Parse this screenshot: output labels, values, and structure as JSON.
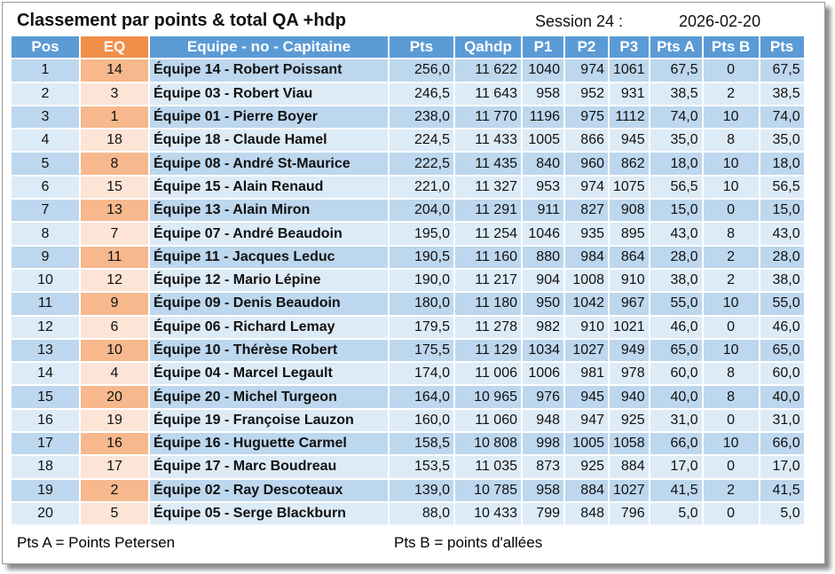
{
  "header": {
    "title": "Classement par points & total QA +hdp",
    "session": "Session 24 :",
    "date": "2026-02-20"
  },
  "table": {
    "columns": [
      "Pos",
      "EQ",
      "Equipe - no - Capitaine",
      "Pts",
      "Qahdp",
      "P1",
      "P2",
      "P3",
      "Pts A",
      "Pts B",
      "Pts"
    ],
    "rows": [
      [
        "1",
        "14",
        "Équipe 14 - Robert Poissant",
        "256,0",
        "11 622",
        "1040",
        "974",
        "1061",
        "67,5",
        "0",
        "67,5"
      ],
      [
        "2",
        "3",
        "Équipe 03 - Robert Viau",
        "246,5",
        "11 643",
        "958",
        "952",
        "931",
        "38,5",
        "2",
        "38,5"
      ],
      [
        "3",
        "1",
        "Équipe 01 - Pierre Boyer",
        "238,0",
        "11 770",
        "1196",
        "975",
        "1112",
        "74,0",
        "10",
        "74,0"
      ],
      [
        "4",
        "18",
        "Équipe 18 - Claude Hamel",
        "224,5",
        "11 433",
        "1005",
        "866",
        "945",
        "35,0",
        "8",
        "35,0"
      ],
      [
        "5",
        "8",
        "Équipe 08 - André St-Maurice",
        "222,5",
        "11 435",
        "840",
        "960",
        "862",
        "18,0",
        "10",
        "18,0"
      ],
      [
        "6",
        "15",
        "Équipe 15 - Alain Renaud",
        "221,0",
        "11 327",
        "953",
        "974",
        "1075",
        "56,5",
        "10",
        "56,5"
      ],
      [
        "7",
        "13",
        "Équipe 13 - Alain Miron",
        "204,0",
        "11 291",
        "911",
        "827",
        "908",
        "15,0",
        "0",
        "15,0"
      ],
      [
        "8",
        "7",
        "Équipe 07 - André Beaudoin",
        "195,0",
        "11 254",
        "1046",
        "935",
        "895",
        "43,0",
        "8",
        "43,0"
      ],
      [
        "9",
        "11",
        "Équipe 11 - Jacques Leduc",
        "190,5",
        "11 160",
        "880",
        "984",
        "864",
        "28,0",
        "2",
        "28,0"
      ],
      [
        "10",
        "12",
        "Équipe 12 - Mario Lépine",
        "190,0",
        "11 217",
        "904",
        "1008",
        "910",
        "38,0",
        "2",
        "38,0"
      ],
      [
        "11",
        "9",
        "Équipe 09 - Denis Beaudoin",
        "180,0",
        "11 180",
        "950",
        "1042",
        "967",
        "55,0",
        "10",
        "55,0"
      ],
      [
        "12",
        "6",
        "Équipe 06 - Richard Lemay",
        "179,5",
        "11 278",
        "982",
        "910",
        "1021",
        "46,0",
        "0",
        "46,0"
      ],
      [
        "13",
        "10",
        "Équipe 10 - Thérèse Robert",
        "175,5",
        "11 129",
        "1034",
        "1027",
        "949",
        "65,0",
        "10",
        "65,0"
      ],
      [
        "14",
        "4",
        "Équipe 04 - Marcel Legault",
        "174,0",
        "11 006",
        "1006",
        "981",
        "978",
        "60,0",
        "8",
        "60,0"
      ],
      [
        "15",
        "20",
        "Équipe 20 - Michel Turgeon",
        "164,0",
        "10 965",
        "976",
        "945",
        "940",
        "40,0",
        "8",
        "40,0"
      ],
      [
        "16",
        "19",
        "Équipe 19 - Françoise Lauzon",
        "160,0",
        "11 060",
        "948",
        "947",
        "925",
        "31,0",
        "0",
        "31,0"
      ],
      [
        "17",
        "16",
        "Équipe 16 - Huguette Carmel",
        "158,5",
        "10 808",
        "998",
        "1005",
        "1058",
        "66,0",
        "10",
        "66,0"
      ],
      [
        "18",
        "17",
        "Équipe 17 - Marc Boudreau",
        "153,5",
        "11 035",
        "873",
        "925",
        "884",
        "17,0",
        "0",
        "17,0"
      ],
      [
        "19",
        "2",
        "Équipe 02 - Ray Descoteaux",
        "139,0",
        "10 785",
        "958",
        "884",
        "1027",
        "41,5",
        "2",
        "41,5"
      ],
      [
        "20",
        "5",
        "Équipe 05 - Serge Blackburn",
        "88,0",
        "10 433",
        "799",
        "848",
        "796",
        "5,0",
        "0",
        "5,0"
      ]
    ]
  },
  "footer": {
    "note_a": "Pts A = Points Petersen",
    "note_b": "Pts B = points d'allées"
  }
}
